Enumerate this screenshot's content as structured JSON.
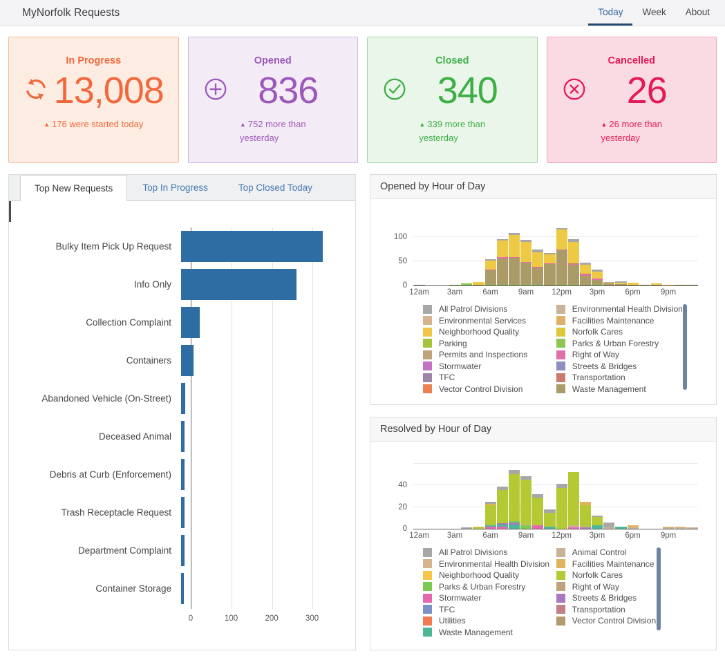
{
  "header": {
    "title": "MyNorfolk Requests",
    "tabs": [
      {
        "label": "Today",
        "active": true
      },
      {
        "label": "Week",
        "active": false
      },
      {
        "label": "About",
        "active": false
      }
    ]
  },
  "cards": [
    {
      "label": "In Progress",
      "value": "13,008",
      "delta": "176 were started today",
      "icon": "sync-icon",
      "accent": "#f2683c",
      "bg": "#fdece1",
      "border": "#f3bb9b"
    },
    {
      "label": "Opened",
      "value": "836",
      "delta": "752 more than\nyesterday",
      "icon": "plus-circle-icon",
      "accent": "#9c57b8",
      "bg": "#f3ecf7",
      "border": "#d3b3e3"
    },
    {
      "label": "Closed",
      "value": "340",
      "delta": "339 more than\nyesterday",
      "icon": "check-circle-icon",
      "accent": "#3eae46",
      "bg": "#eaf6ea",
      "border": "#a3d9a5"
    },
    {
      "label": "Cancelled",
      "value": "26",
      "delta": "26 more than\nyesterday",
      "icon": "x-circle-icon",
      "accent": "#e41a54",
      "bg": "#fbdbe3",
      "border": "#f0a3b8"
    }
  ],
  "left_panel": {
    "tabs": [
      {
        "label": "Top New Requests",
        "active": true
      },
      {
        "label": "Top In Progress",
        "active": false
      },
      {
        "label": "Top Closed Today",
        "active": false
      }
    ]
  },
  "panels": {
    "opened": {
      "title": "Opened by Hour of Day"
    },
    "resolved": {
      "title": "Resolved by Hour of Day"
    }
  },
  "chart_data": [
    {
      "id": "top_new_requests",
      "type": "bar",
      "orientation": "horizontal",
      "title": "Top New Requests",
      "bar_color": "#2e6da4",
      "categories": [
        "Bulky Item Pick Up Request",
        "Info Only",
        "Collection Complaint",
        "Containers",
        "Abandoned Vehicle (On-Street)",
        "Deceased Animal",
        "Debris at Curb (Enforcement)",
        "Trash Receptacle Request",
        "Department Complaint",
        "Container Storage"
      ],
      "values": [
        350,
        285,
        46,
        31,
        11,
        9,
        9,
        8,
        8,
        7
      ],
      "xticks": [
        0,
        100,
        200,
        300
      ],
      "xmax": 405,
      "grid": true
    },
    {
      "id": "opened_by_hour",
      "type": "bar",
      "stacked": true,
      "title": "Opened by Hour of Day",
      "x": [
        0,
        1,
        2,
        3,
        4,
        5,
        6,
        7,
        8,
        9,
        10,
        11,
        12,
        13,
        14,
        15,
        16,
        17,
        18,
        19,
        20,
        21,
        22,
        23
      ],
      "xtick_hours": [
        0,
        3,
        6,
        9,
        12,
        15,
        18,
        21
      ],
      "xtick_labels": [
        "12am",
        "3am",
        "6am",
        "9am",
        "12pm",
        "3pm",
        "6pm",
        "9pm"
      ],
      "yticks": [
        0,
        50,
        100
      ],
      "gridlines": [
        50,
        100
      ],
      "ymax": 145,
      "series": [
        {
          "name": "Parks & Urban Forestry",
          "color": "#8cc653",
          "values": [
            0,
            0,
            0,
            1,
            4,
            0,
            2,
            1,
            1,
            1,
            1,
            0,
            1,
            1,
            0,
            1,
            0,
            0,
            0,
            0,
            0,
            0,
            0,
            0
          ]
        },
        {
          "name": "Waste Management",
          "color": "#ab9b66",
          "values": [
            0,
            0,
            0,
            0,
            0,
            2,
            30,
            56,
            57,
            47,
            36,
            45,
            73,
            43,
            21,
            11,
            4,
            3,
            1,
            1,
            1,
            0,
            1,
            1
          ]
        },
        {
          "name": "Right of Way",
          "color": "#e170a8",
          "values": [
            0,
            0,
            0,
            0,
            0,
            0,
            1,
            2,
            1,
            1,
            1,
            1,
            1,
            1,
            2,
            2,
            0,
            0,
            0,
            0,
            0,
            0,
            0,
            0
          ]
        },
        {
          "name": "Transportation",
          "color": "#cc7a70",
          "values": [
            0,
            0,
            0,
            0,
            0,
            0,
            1,
            1,
            1,
            1,
            1,
            0,
            1,
            1,
            1,
            1,
            0,
            0,
            0,
            0,
            0,
            0,
            0,
            0
          ]
        },
        {
          "name": "Neighborhood Quality",
          "color": "#eec944",
          "values": [
            0,
            0,
            0,
            1,
            1,
            5,
            18,
            34,
            46,
            42,
            31,
            20,
            41,
            46,
            20,
            14,
            2,
            3,
            5,
            0,
            3,
            2,
            1,
            0
          ]
        },
        {
          "name": "All Patrol Divisions",
          "color": "#a7a7a7",
          "values": [
            1,
            0,
            0,
            0,
            0,
            0,
            3,
            3,
            4,
            4,
            6,
            2,
            4,
            5,
            4,
            4,
            1,
            3,
            0,
            0,
            1,
            0,
            0,
            0
          ]
        }
      ],
      "legend": {
        "col1": [
          {
            "label": "All Patrol Divisions",
            "color": "#a7a7a7"
          },
          {
            "label": "Environmental Services",
            "color": "#d4b48e"
          },
          {
            "label": "Neighborhood Quality",
            "color": "#f0c64a"
          },
          {
            "label": "Parking",
            "color": "#a5c43c"
          },
          {
            "label": "Permits and Inspections",
            "color": "#bfa37a"
          },
          {
            "label": "Stormwater",
            "color": "#c473c4"
          },
          {
            "label": "TFC",
            "color": "#9e85a8"
          },
          {
            "label": "Vector Control Division",
            "color": "#ec8050"
          }
        ],
        "col2": [
          {
            "label": "Environmental Health Division",
            "color": "#c9b299"
          },
          {
            "label": "Facilities Maintenance",
            "color": "#ddb06a"
          },
          {
            "label": "Norfolk Cares",
            "color": "#ddc73a"
          },
          {
            "label": "Parks & Urban Forestry",
            "color": "#8cc653"
          },
          {
            "label": "Right of Way",
            "color": "#e170a8"
          },
          {
            "label": "Streets & Bridges",
            "color": "#8e8ec0"
          },
          {
            "label": "Transportation",
            "color": "#cc7a70"
          },
          {
            "label": "Waste Management",
            "color": "#ab9b66"
          }
        ]
      }
    },
    {
      "id": "resolved_by_hour",
      "type": "bar",
      "stacked": true,
      "title": "Resolved by Hour of Day",
      "x": [
        0,
        1,
        2,
        3,
        4,
        5,
        6,
        7,
        8,
        9,
        10,
        11,
        12,
        13,
        14,
        15,
        16,
        17,
        18,
        19,
        20,
        21,
        22,
        23
      ],
      "xtick_hours": [
        0,
        3,
        6,
        9,
        12,
        15,
        18,
        21
      ],
      "xtick_labels": [
        "12am",
        "3am",
        "6am",
        "9am",
        "12pm",
        "3pm",
        "6pm",
        "9pm"
      ],
      "yticks": [
        0,
        20,
        40
      ],
      "gridlines": [
        20,
        40,
        60
      ],
      "ymax": 65,
      "series": [
        {
          "name": "Stormwater",
          "color": "#e667ae",
          "values": [
            0,
            0,
            0,
            0,
            0,
            0,
            2,
            2,
            0,
            0,
            3,
            0,
            0,
            1,
            0,
            0,
            0,
            0,
            0,
            0,
            0,
            0,
            0,
            0
          ]
        },
        {
          "name": "Waste Management",
          "color": "#4cb896",
          "values": [
            0,
            0,
            0,
            0,
            0,
            0,
            1,
            2,
            4,
            0,
            0,
            2,
            0,
            0,
            0,
            3,
            0,
            2,
            0,
            0,
            0,
            0,
            0,
            0
          ]
        },
        {
          "name": "Streets & Bridges",
          "color": "#a878c0",
          "values": [
            0,
            0,
            0,
            0,
            0,
            0,
            0,
            1,
            2,
            0,
            0,
            0,
            0,
            0,
            1,
            0,
            0,
            0,
            0,
            0,
            0,
            0,
            0,
            0
          ]
        },
        {
          "name": "Parks & Urban Forestry",
          "color": "#7cc850",
          "values": [
            0,
            0,
            0,
            0,
            0,
            0,
            0,
            0,
            1,
            3,
            0,
            0,
            0,
            0,
            0,
            0,
            0,
            0,
            0,
            0,
            0,
            0,
            0,
            0
          ]
        },
        {
          "name": "Animal Control",
          "color": "#c9b299",
          "values": [
            0,
            0,
            0,
            0,
            0,
            0,
            0,
            0,
            0,
            1,
            0,
            0,
            0,
            2,
            1,
            0,
            1,
            0,
            1,
            0,
            0,
            1,
            1,
            1
          ]
        },
        {
          "name": "Norfolk Cares",
          "color": "#b5c934",
          "values": [
            0,
            0,
            0,
            0,
            0,
            1,
            19,
            31,
            44,
            42,
            26,
            13,
            38,
            50,
            20,
            8,
            0,
            0,
            0,
            0,
            0,
            0,
            0,
            0
          ]
        },
        {
          "name": "Facilities Maintenance",
          "color": "#e0b45c",
          "values": [
            0,
            0,
            0,
            0,
            0,
            1,
            1,
            0,
            0,
            0,
            0,
            0,
            0,
            0,
            3,
            0,
            0,
            0,
            2,
            0,
            0,
            1,
            1,
            0
          ]
        },
        {
          "name": "All Patrol Divisions",
          "color": "#a7a7a7",
          "values": [
            0,
            0,
            0,
            0,
            1,
            0,
            2,
            3,
            4,
            3,
            3,
            3,
            4,
            0,
            0,
            1,
            5,
            0,
            0,
            0,
            0,
            0,
            0,
            0
          ]
        }
      ],
      "legend": {
        "col1": [
          {
            "label": "All Patrol Divisions",
            "color": "#a7a7a7"
          },
          {
            "label": "Environmental Health Division",
            "color": "#d4b48e"
          },
          {
            "label": "Neighborhood Quality",
            "color": "#f5c64a"
          },
          {
            "label": "Parks & Urban Forestry",
            "color": "#7cc850"
          },
          {
            "label": "Stormwater",
            "color": "#e667ae"
          },
          {
            "label": "TFC",
            "color": "#7b92c8"
          },
          {
            "label": "Utilities",
            "color": "#f47950"
          },
          {
            "label": "Waste Management",
            "color": "#4cb896"
          }
        ],
        "col2": [
          {
            "label": "Animal Control",
            "color": "#c9b299"
          },
          {
            "label": "Facilities Maintenance",
            "color": "#e0b45c"
          },
          {
            "label": "Norfolk Cares",
            "color": "#b5c934"
          },
          {
            "label": "Right of Way",
            "color": "#c0a37c"
          },
          {
            "label": "Streets & Bridges",
            "color": "#a878c0"
          },
          {
            "label": "Transportation",
            "color": "#c08085"
          },
          {
            "label": "Vector Control Division",
            "color": "#b09a6e"
          }
        ]
      }
    }
  ]
}
